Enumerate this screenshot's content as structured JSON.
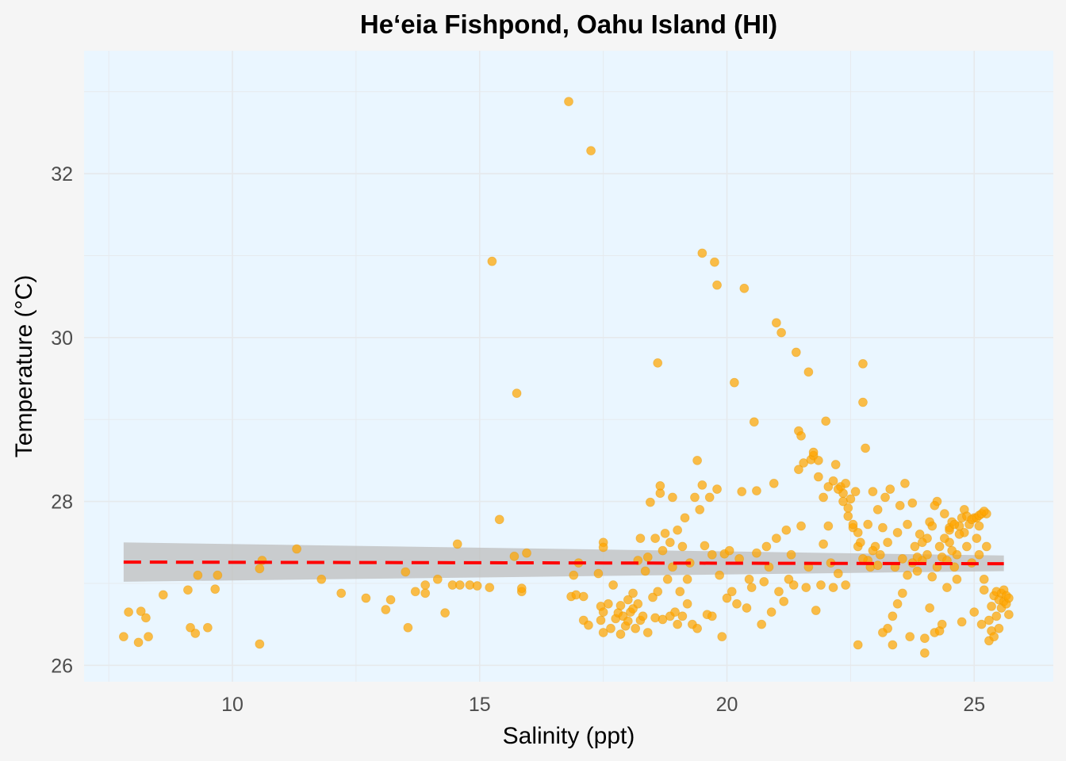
{
  "chart_data": {
    "type": "scatter",
    "title": "He‘eia Fishpond, Oahu Island (HI)",
    "xlabel": "Salinity (ppt)",
    "ylabel": "Temperature (°C)",
    "xlim": [
      7,
      26.6
    ],
    "ylim": [
      25.8,
      33.5
    ],
    "x_ticks": [
      10,
      15,
      20,
      25
    ],
    "y_ticks": [
      26,
      28,
      30,
      32
    ],
    "grid": true,
    "colors": {
      "points": "#FFA500",
      "trend_line": "#FF0000",
      "confidence_band": "#BEBEBE",
      "panel_background": "#EAF6FF",
      "page_background": "#F5F5F5"
    },
    "trend": {
      "style": "dashed",
      "x": [
        7.8,
        25.6
      ],
      "y": [
        27.26,
        27.24
      ],
      "band_lower": [
        27.02,
        27.15
      ],
      "band_upper": [
        27.5,
        27.34
      ]
    },
    "points": [
      [
        7.8,
        26.35
      ],
      [
        7.9,
        26.65
      ],
      [
        8.1,
        26.28
      ],
      [
        8.15,
        26.66
      ],
      [
        8.25,
        26.58
      ],
      [
        8.3,
        26.35
      ],
      [
        8.6,
        26.86
      ],
      [
        9.1,
        26.92
      ],
      [
        9.15,
        26.46
      ],
      [
        9.25,
        26.39
      ],
      [
        9.3,
        27.1
      ],
      [
        9.5,
        26.46
      ],
      [
        9.65,
        26.93
      ],
      [
        9.7,
        27.1
      ],
      [
        10.55,
        26.26
      ],
      [
        10.55,
        27.18
      ],
      [
        10.6,
        27.28
      ],
      [
        11.3,
        27.42
      ],
      [
        11.8,
        27.05
      ],
      [
        12.2,
        26.88
      ],
      [
        12.7,
        26.82
      ],
      [
        13.1,
        26.68
      ],
      [
        13.2,
        26.8
      ],
      [
        13.5,
        27.14
      ],
      [
        13.55,
        26.46
      ],
      [
        13.7,
        26.9
      ],
      [
        13.9,
        26.98
      ],
      [
        13.9,
        26.88
      ],
      [
        14.15,
        27.05
      ],
      [
        14.3,
        26.64
      ],
      [
        14.45,
        26.98
      ],
      [
        14.55,
        27.48
      ],
      [
        14.6,
        26.98
      ],
      [
        14.8,
        26.98
      ],
      [
        14.95,
        26.97
      ],
      [
        15.2,
        26.95
      ],
      [
        15.25,
        30.93
      ],
      [
        15.4,
        27.78
      ],
      [
        15.7,
        27.33
      ],
      [
        15.75,
        29.32
      ],
      [
        15.85,
        26.9
      ],
      [
        15.85,
        26.94
      ],
      [
        15.95,
        27.37
      ],
      [
        16.8,
        32.88
      ],
      [
        16.85,
        26.84
      ],
      [
        16.9,
        27.1
      ],
      [
        16.95,
        26.86
      ],
      [
        17.0,
        27.25
      ],
      [
        17.1,
        26.55
      ],
      [
        17.1,
        26.84
      ],
      [
        17.2,
        26.49
      ],
      [
        17.25,
        32.28
      ],
      [
        17.4,
        27.12
      ],
      [
        17.45,
        26.55
      ],
      [
        17.45,
        26.72
      ],
      [
        17.5,
        26.65
      ],
      [
        17.5,
        26.4
      ],
      [
        17.5,
        27.5
      ],
      [
        17.5,
        27.44
      ],
      [
        17.6,
        26.75
      ],
      [
        17.65,
        26.45
      ],
      [
        17.7,
        26.98
      ],
      [
        17.75,
        26.57
      ],
      [
        17.8,
        26.64
      ],
      [
        17.85,
        26.38
      ],
      [
        17.85,
        26.73
      ],
      [
        17.9,
        26.6
      ],
      [
        17.95,
        26.48
      ],
      [
        18.0,
        26.8
      ],
      [
        18.0,
        26.54
      ],
      [
        18.05,
        26.65
      ],
      [
        18.1,
        26.88
      ],
      [
        18.1,
        26.69
      ],
      [
        18.15,
        26.45
      ],
      [
        18.2,
        26.75
      ],
      [
        18.2,
        27.28
      ],
      [
        18.25,
        26.55
      ],
      [
        18.25,
        27.55
      ],
      [
        18.3,
        26.6
      ],
      [
        18.35,
        27.15
      ],
      [
        18.4,
        27.32
      ],
      [
        18.4,
        26.4
      ],
      [
        18.45,
        27.99
      ],
      [
        18.5,
        26.83
      ],
      [
        18.55,
        27.55
      ],
      [
        18.55,
        26.58
      ],
      [
        18.6,
        26.9
      ],
      [
        18.6,
        29.69
      ],
      [
        18.65,
        28.19
      ],
      [
        18.65,
        28.1
      ],
      [
        18.7,
        27.4
      ],
      [
        18.7,
        26.56
      ],
      [
        18.75,
        27.61
      ],
      [
        18.8,
        27.05
      ],
      [
        18.85,
        27.5
      ],
      [
        18.85,
        26.6
      ],
      [
        18.9,
        27.2
      ],
      [
        18.9,
        28.05
      ],
      [
        18.95,
        26.65
      ],
      [
        19.0,
        27.65
      ],
      [
        19.0,
        26.5
      ],
      [
        19.05,
        26.9
      ],
      [
        19.1,
        27.45
      ],
      [
        19.1,
        26.6
      ],
      [
        19.15,
        27.8
      ],
      [
        19.2,
        26.75
      ],
      [
        19.2,
        27.05
      ],
      [
        19.25,
        27.25
      ],
      [
        19.3,
        26.5
      ],
      [
        19.35,
        28.05
      ],
      [
        19.4,
        26.45
      ],
      [
        19.4,
        28.5
      ],
      [
        19.45,
        27.9
      ],
      [
        19.5,
        28.2
      ],
      [
        19.5,
        31.03
      ],
      [
        19.55,
        27.46
      ],
      [
        19.6,
        26.62
      ],
      [
        19.65,
        28.05
      ],
      [
        19.7,
        27.35
      ],
      [
        19.7,
        26.6
      ],
      [
        19.75,
        30.92
      ],
      [
        19.8,
        30.64
      ],
      [
        19.8,
        28.15
      ],
      [
        19.85,
        27.1
      ],
      [
        19.9,
        26.35
      ],
      [
        19.95,
        27.36
      ],
      [
        20.0,
        26.82
      ],
      [
        20.05,
        27.4
      ],
      [
        20.1,
        26.9
      ],
      [
        20.15,
        29.45
      ],
      [
        20.2,
        26.75
      ],
      [
        20.25,
        27.3
      ],
      [
        20.3,
        28.12
      ],
      [
        20.35,
        30.6
      ],
      [
        20.4,
        26.7
      ],
      [
        20.45,
        27.05
      ],
      [
        20.5,
        26.95
      ],
      [
        20.55,
        28.97
      ],
      [
        20.6,
        27.37
      ],
      [
        20.6,
        28.13
      ],
      [
        20.7,
        26.5
      ],
      [
        20.75,
        27.02
      ],
      [
        20.8,
        27.45
      ],
      [
        20.85,
        27.2
      ],
      [
        20.9,
        26.65
      ],
      [
        20.95,
        28.22
      ],
      [
        21.0,
        30.18
      ],
      [
        21.0,
        27.55
      ],
      [
        21.05,
        26.9
      ],
      [
        21.1,
        30.06
      ],
      [
        21.15,
        26.78
      ],
      [
        21.2,
        27.65
      ],
      [
        21.25,
        27.05
      ],
      [
        21.3,
        27.35
      ],
      [
        21.35,
        26.98
      ],
      [
        21.4,
        29.82
      ],
      [
        21.45,
        28.39
      ],
      [
        21.45,
        28.86
      ],
      [
        21.5,
        28.8
      ],
      [
        21.5,
        27.7
      ],
      [
        21.55,
        28.47
      ],
      [
        21.6,
        26.95
      ],
      [
        21.65,
        29.58
      ],
      [
        21.65,
        27.2
      ],
      [
        21.7,
        28.51
      ],
      [
        21.75,
        28.56
      ],
      [
        21.8,
        26.67
      ],
      [
        21.85,
        28.5
      ],
      [
        21.9,
        26.98
      ],
      [
        21.95,
        27.48
      ],
      [
        22.0,
        28.98
      ],
      [
        22.05,
        27.7
      ],
      [
        22.1,
        27.25
      ],
      [
        22.15,
        26.95
      ],
      [
        22.2,
        28.45
      ],
      [
        22.25,
        27.12
      ],
      [
        22.3,
        28.18
      ],
      [
        22.35,
        28.1
      ],
      [
        22.4,
        26.98
      ],
      [
        22.4,
        28.22
      ],
      [
        22.45,
        27.82
      ],
      [
        22.5,
        28.03
      ],
      [
        22.55,
        27.68
      ],
      [
        22.6,
        28.12
      ],
      [
        22.65,
        27.45
      ],
      [
        22.65,
        26.25
      ],
      [
        22.7,
        27.5
      ],
      [
        22.75,
        29.68
      ],
      [
        22.75,
        29.21
      ],
      [
        22.8,
        28.65
      ],
      [
        22.85,
        27.72
      ],
      [
        22.9,
        27.2
      ],
      [
        22.95,
        28.12
      ],
      [
        23.0,
        27.45
      ],
      [
        23.05,
        27.9
      ],
      [
        23.1,
        27.35
      ],
      [
        23.15,
        27.68
      ],
      [
        23.2,
        28.05
      ],
      [
        23.25,
        27.5
      ],
      [
        23.3,
        28.15
      ],
      [
        23.35,
        26.25
      ],
      [
        23.4,
        27.2
      ],
      [
        23.45,
        27.62
      ],
      [
        23.5,
        27.95
      ],
      [
        23.55,
        27.3
      ],
      [
        23.6,
        28.22
      ],
      [
        23.65,
        27.72
      ],
      [
        23.7,
        26.35
      ],
      [
        23.75,
        27.98
      ],
      [
        23.8,
        27.45
      ],
      [
        23.85,
        27.15
      ],
      [
        23.9,
        27.6
      ],
      [
        23.95,
        27.28
      ],
      [
        24.0,
        26.33
      ],
      [
        24.0,
        26.15
      ],
      [
        24.05,
        27.55
      ],
      [
        24.1,
        27.75
      ],
      [
        24.1,
        26.7
      ],
      [
        24.15,
        27.08
      ],
      [
        24.2,
        26.4
      ],
      [
        24.25,
        28.0
      ],
      [
        24.3,
        26.42
      ],
      [
        24.35,
        26.5
      ],
      [
        24.4,
        27.85
      ],
      [
        24.45,
        26.95
      ],
      [
        24.5,
        27.68
      ],
      [
        24.5,
        27.5
      ],
      [
        24.55,
        27.75
      ],
      [
        24.6,
        27.2
      ],
      [
        24.65,
        27.35
      ],
      [
        24.7,
        27.7
      ],
      [
        24.75,
        26.53
      ],
      [
        24.8,
        27.9
      ],
      [
        24.8,
        27.62
      ],
      [
        24.85,
        27.45
      ],
      [
        24.9,
        27.72
      ],
      [
        24.95,
        27.25
      ],
      [
        25.0,
        26.65
      ],
      [
        25.0,
        27.8
      ],
      [
        25.05,
        27.55
      ],
      [
        25.1,
        27.7
      ],
      [
        25.1,
        27.35
      ],
      [
        25.15,
        26.5
      ],
      [
        25.2,
        27.05
      ],
      [
        25.2,
        26.92
      ],
      [
        25.25,
        27.85
      ],
      [
        25.25,
        27.45
      ],
      [
        25.3,
        26.55
      ],
      [
        25.3,
        26.3
      ],
      [
        25.35,
        26.72
      ],
      [
        25.35,
        26.42
      ],
      [
        25.4,
        26.85
      ],
      [
        25.4,
        26.35
      ],
      [
        25.45,
        26.9
      ],
      [
        25.45,
        26.6
      ],
      [
        25.5,
        26.8
      ],
      [
        25.5,
        26.45
      ],
      [
        25.55,
        26.88
      ],
      [
        25.55,
        26.7
      ],
      [
        25.6,
        26.92
      ],
      [
        25.6,
        26.78
      ],
      [
        25.65,
        26.85
      ],
      [
        25.65,
        26.75
      ],
      [
        25.7,
        26.62
      ],
      [
        25.7,
        26.82
      ],
      [
        24.25,
        27.2
      ],
      [
        24.3,
        27.45
      ],
      [
        24.35,
        27.32
      ],
      [
        24.4,
        27.55
      ],
      [
        24.45,
        27.28
      ],
      [
        24.5,
        27.65
      ],
      [
        24.55,
        27.4
      ],
      [
        24.6,
        27.72
      ],
      [
        24.65,
        27.05
      ],
      [
        24.7,
        27.6
      ],
      [
        24.75,
        27.8
      ],
      [
        24.85,
        27.82
      ],
      [
        24.95,
        27.78
      ],
      [
        25.05,
        27.8
      ],
      [
        25.1,
        27.83
      ],
      [
        25.15,
        27.85
      ],
      [
        25.2,
        27.88
      ],
      [
        24.2,
        27.95
      ],
      [
        24.15,
        27.7
      ],
      [
        24.05,
        27.35
      ],
      [
        23.95,
        27.5
      ],
      [
        23.85,
        27.32
      ],
      [
        23.75,
        27.25
      ],
      [
        23.65,
        27.1
      ],
      [
        23.55,
        26.88
      ],
      [
        23.45,
        26.75
      ],
      [
        23.35,
        26.6
      ],
      [
        23.25,
        26.45
      ],
      [
        23.15,
        26.4
      ],
      [
        23.05,
        27.22
      ],
      [
        22.95,
        27.4
      ],
      [
        22.85,
        27.28
      ],
      [
        22.75,
        27.3
      ],
      [
        22.65,
        27.62
      ],
      [
        22.55,
        27.72
      ],
      [
        22.45,
        27.92
      ],
      [
        22.35,
        28.0
      ],
      [
        22.25,
        28.15
      ],
      [
        22.15,
        28.25
      ],
      [
        22.05,
        28.18
      ],
      [
        21.95,
        28.05
      ],
      [
        21.85,
        28.3
      ],
      [
        21.75,
        28.6
      ]
    ]
  }
}
